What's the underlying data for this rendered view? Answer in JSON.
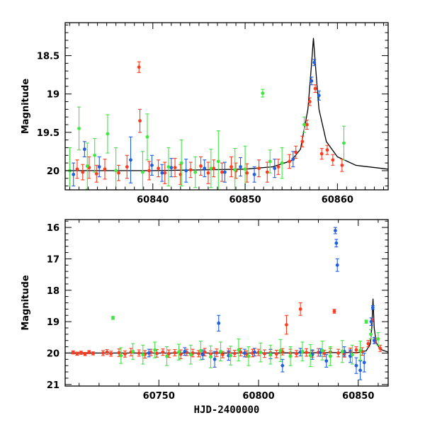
{
  "chart_data": [
    {
      "type": "scatter",
      "title": "",
      "xlabel": "",
      "ylabel": "Magnitude",
      "xlim": [
        60830.5,
        60865.5
      ],
      "ylim": [
        20.25,
        18.07
      ],
      "y_inverted": true,
      "xticks": [
        "60840",
        "60850",
        "60860"
      ],
      "yticks": [
        "18.5",
        "19",
        "19.5",
        "20"
      ],
      "colors": {
        "red": "#ff3b1f",
        "blue": "#1f5fe0",
        "green": "#3ee83e",
        "model": "#000000"
      },
      "model_curve": {
        "name": "",
        "peak_x": 60857.4,
        "peak_mag": 18.27,
        "baseline_mag": 20.0,
        "x": [
          60830.5,
          60840,
          60845,
          60850,
          60853,
          60855,
          60856,
          60856.8,
          60857.2,
          60857.4,
          60857.6,
          60858,
          60858.8,
          60860,
          60862,
          60865.5
        ],
        "y": [
          20.0,
          20.0,
          19.99,
          19.98,
          19.95,
          19.87,
          19.72,
          19.2,
          18.6,
          18.27,
          18.6,
          19.2,
          19.62,
          19.82,
          19.93,
          19.98
        ]
      },
      "series": [
        {
          "color": "red",
          "x": [
            60831.8,
            60832.4,
            60833.1,
            60833.9,
            60834.8,
            60836.3,
            60837.2,
            60838.5,
            60838.6,
            60839.6,
            60840.6,
            60841.3,
            60842.4,
            60843.0,
            60844.1,
            60845.2,
            60846.0,
            60846.6,
            60847.5,
            60848.5,
            60849.0,
            60850.2,
            60851.5,
            60852.4,
            60853.6,
            60854.8,
            60855.5,
            60856.2,
            60856.7,
            60857.0,
            60857.6,
            60858.3,
            60858.9,
            60859.5,
            60860.5
          ],
          "y": [
            19.98,
            20.02,
            19.96,
            20.04,
            19.98,
            20.03,
            19.95,
            18.65,
            19.35,
            20.0,
            19.97,
            20.03,
            19.96,
            20.05,
            19.99,
            19.94,
            20.03,
            19.97,
            20.02,
            19.95,
            20.0,
            20.03,
            19.97,
            20.02,
            19.95,
            19.88,
            19.76,
            19.62,
            19.4,
            19.1,
            18.93,
            19.78,
            19.73,
            19.86,
            19.93
          ],
          "err": [
            0.12,
            0.1,
            0.14,
            0.11,
            0.13,
            0.1,
            0.15,
            0.07,
            0.15,
            0.12,
            0.11,
            0.14,
            0.12,
            0.13,
            0.1,
            0.12,
            0.14,
            0.11,
            0.12,
            0.13,
            0.1,
            0.12,
            0.11,
            0.13,
            0.1,
            0.09,
            0.08,
            0.07,
            0.06,
            0.05,
            0.05,
            0.07,
            0.06,
            0.07,
            0.08
          ]
        },
        {
          "color": "blue",
          "x": [
            60831.4,
            60832.6,
            60834.2,
            60837.6,
            60839.9,
            60841.0,
            60842.0,
            60843.6,
            60845.6,
            60847.8,
            60849.5,
            60851.0,
            60853.2,
            60855.2,
            60857.2,
            60857.5,
            60858.0
          ],
          "y": [
            20.05,
            19.72,
            19.95,
            19.86,
            19.93,
            20.03,
            19.96,
            20.0,
            19.97,
            20.02,
            19.95,
            20.05,
            19.97,
            19.85,
            18.83,
            18.59,
            19.02
          ],
          "err": [
            0.15,
            0.1,
            0.13,
            0.3,
            0.13,
            0.11,
            0.12,
            0.15,
            0.11,
            0.13,
            0.12,
            0.1,
            0.12,
            0.1,
            0.05,
            0.04,
            0.06
          ]
        },
        {
          "color": "green",
          "x": [
            60831.0,
            60832.0,
            60832.9,
            60833.7,
            60835.1,
            60836.0,
            60838.9,
            60839.4,
            60841.7,
            60843.1,
            60844.6,
            60846.3,
            60847.1,
            60848.9,
            60850.0,
            60851.9,
            60852.7,
            60854.0,
            60856.4,
            60860.7
          ],
          "y": [
            20.0,
            19.45,
            19.94,
            19.8,
            19.52,
            20.0,
            20.02,
            19.56,
            19.95,
            19.9,
            20.02,
            19.97,
            19.88,
            19.99,
            19.98,
            18.99,
            19.88,
            19.9,
            19.4,
            19.64
          ],
          "err": [
            0.3,
            0.28,
            0.3,
            0.22,
            0.25,
            0.3,
            0.27,
            0.3,
            0.25,
            0.3,
            0.2,
            0.25,
            0.4,
            0.28,
            0.3,
            0.05,
            0.15,
            0.2,
            0.1,
            0.22
          ]
        }
      ]
    },
    {
      "type": "scatter",
      "title": "",
      "xlabel": "HJD-2400000",
      "ylabel": "Magnitude",
      "xlim": [
        60703,
        60865
      ],
      "ylim": [
        21.05,
        15.75
      ],
      "y_inverted": true,
      "xticks": [
        "60750",
        "60800",
        "60850"
      ],
      "yticks": [
        "16",
        "17",
        "18",
        "19",
        "20",
        "21"
      ],
      "colors": {
        "red": "#ff3b1f",
        "blue": "#1f5fe0",
        "green": "#3ee83e",
        "model": "#000000"
      },
      "model_curve": {
        "name": "",
        "peak_x": 60857.4,
        "peak_mag": 18.27,
        "baseline_mag": 20.0,
        "x": [
          60703,
          60800,
          60850,
          60854,
          60856,
          60856.8,
          60857.4,
          60858,
          60859,
          60861,
          60865
        ],
        "y": [
          20.0,
          20.0,
          19.98,
          19.93,
          19.72,
          19.2,
          18.27,
          19.2,
          19.67,
          19.88,
          19.97
        ]
      },
      "series": [
        {
          "color": "red",
          "x": [
            60707,
            60709,
            60711,
            60713,
            60715,
            60717,
            60722,
            60724,
            60726,
            60730,
            60733,
            60736,
            60740,
            60743,
            60746,
            60749,
            60752,
            60755,
            60758,
            60761,
            60764,
            60767,
            60770,
            60773,
            60776,
            60779,
            60782,
            60785,
            60788,
            60791,
            60794,
            60797,
            60800,
            60803,
            60806,
            60809,
            60812,
            60814,
            60816,
            60819,
            60821,
            60824,
            60827,
            60830,
            60833,
            60836,
            60838,
            60840,
            60843,
            60846,
            60849,
            60852,
            60855,
            60857,
            60858.5,
            60861
          ],
          "y": [
            19.98,
            20.02,
            19.99,
            20.03,
            19.97,
            20.01,
            20.0,
            19.97,
            20.02,
            19.99,
            20.03,
            19.97,
            20.0,
            20.04,
            19.98,
            20.01,
            19.97,
            20.02,
            19.99,
            20.04,
            19.98,
            20.0,
            20.02,
            19.97,
            20.03,
            19.99,
            20.05,
            19.98,
            20.01,
            19.97,
            20.03,
            20.0,
            19.98,
            20.02,
            19.99,
            20.03,
            19.96,
            19.1,
            20.0,
            20.02,
            18.6,
            19.98,
            20.03,
            19.98,
            20.01,
            19.97,
            18.67,
            20.0,
            20.03,
            19.96,
            19.9,
            19.95,
            19.7,
            18.95,
            19.6,
            19.85
          ],
          "err": [
            0.05,
            0.05,
            0.05,
            0.05,
            0.05,
            0.05,
            0.08,
            0.08,
            0.08,
            0.12,
            0.1,
            0.12,
            0.1,
            0.12,
            0.1,
            0.12,
            0.1,
            0.12,
            0.1,
            0.14,
            0.1,
            0.12,
            0.1,
            0.12,
            0.1,
            0.12,
            0.1,
            0.12,
            0.1,
            0.12,
            0.1,
            0.12,
            0.1,
            0.12,
            0.1,
            0.12,
            0.1,
            0.3,
            0.12,
            0.1,
            0.2,
            0.12,
            0.1,
            0.12,
            0.1,
            0.12,
            0.06,
            0.12,
            0.1,
            0.12,
            0.1,
            0.12,
            0.1,
            0.06,
            0.08,
            0.1
          ]
        },
        {
          "color": "blue",
          "x": [
            60745,
            60763,
            60772,
            60778,
            60780,
            60785,
            60793,
            60798,
            60806,
            60812,
            60821,
            60827,
            60831,
            60834,
            60838.5,
            60839,
            60839.5,
            60843,
            60846,
            60849,
            60851,
            60853,
            60856.5,
            60857.3,
            60858
          ],
          "y": [
            20.0,
            19.95,
            20.05,
            20.2,
            19.05,
            20.08,
            20.0,
            19.97,
            20.03,
            20.4,
            19.97,
            20.05,
            19.98,
            20.25,
            16.1,
            16.5,
            17.2,
            19.95,
            20.1,
            20.4,
            20.55,
            20.3,
            19.0,
            18.55,
            19.6
          ],
          "err": [
            0.12,
            0.12,
            0.15,
            0.25,
            0.25,
            0.15,
            0.12,
            0.12,
            0.15,
            0.2,
            0.12,
            0.15,
            0.12,
            0.2,
            0.1,
            0.12,
            0.2,
            0.15,
            0.2,
            0.25,
            0.3,
            0.3,
            0.12,
            0.06,
            0.1
          ]
        },
        {
          "color": "green",
          "x": [
            60727,
            60731,
            60737,
            60742,
            60748,
            60754,
            60760,
            60766,
            60771,
            60776,
            60781,
            60786,
            60790,
            60795,
            60801,
            60806,
            60811,
            60816,
            60822,
            60826,
            60832,
            60836,
            60842,
            60847,
            60851,
            60854,
            60856.3,
            60860
          ],
          "y": [
            18.88,
            20.08,
            19.95,
            20.05,
            19.9,
            20.1,
            19.97,
            20.05,
            19.92,
            20.12,
            19.95,
            20.08,
            19.9,
            20.1,
            19.98,
            20.05,
            19.92,
            20.1,
            19.95,
            20.08,
            19.92,
            20.1,
            19.95,
            20.05,
            19.92,
            19.0,
            19.4,
            19.55
          ],
          "err": [
            0.05,
            0.25,
            0.25,
            0.3,
            0.25,
            0.3,
            0.25,
            0.3,
            0.3,
            0.35,
            0.3,
            0.3,
            0.35,
            0.3,
            0.3,
            0.3,
            0.35,
            0.3,
            0.3,
            0.35,
            0.3,
            0.3,
            0.35,
            0.3,
            0.3,
            0.05,
            0.15,
            0.2
          ]
        }
      ]
    }
  ]
}
